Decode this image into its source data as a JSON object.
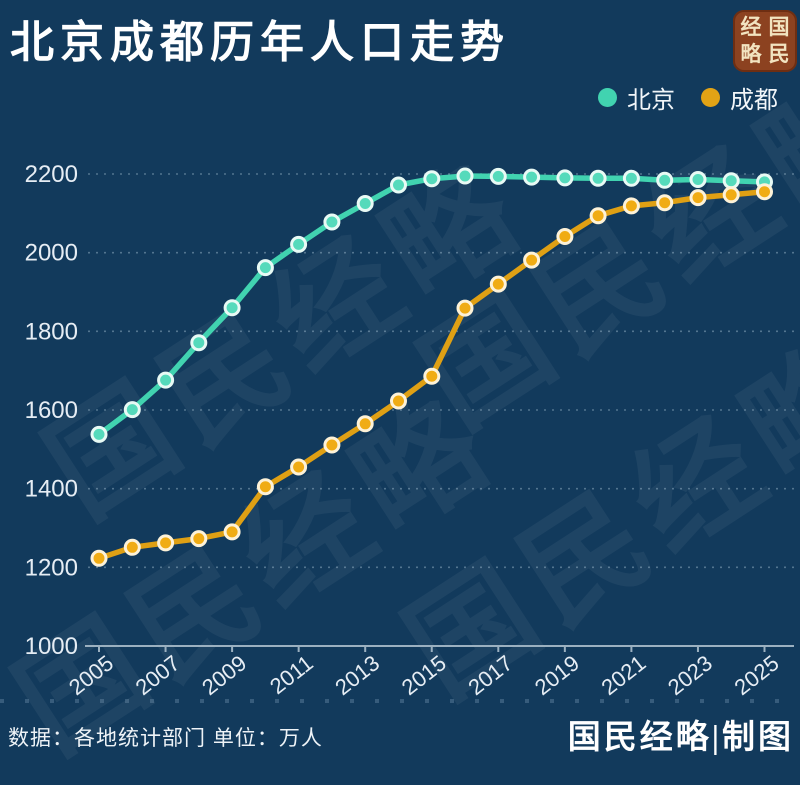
{
  "page": {
    "background": "#123a5c"
  },
  "header": {
    "title": "北京成都历年人口走势",
    "logo": {
      "chars_row_major": [
        "经",
        "国",
        "略",
        "民"
      ],
      "reading": "国民经略",
      "bg_color": "#8c4220",
      "text_color": "#f2e4c0"
    }
  },
  "legend": [
    {
      "label": "北京",
      "color": "#41d3b0"
    },
    {
      "label": "成都",
      "color": "#e2a315"
    }
  ],
  "watermark": {
    "text": "国民经略"
  },
  "footer": {
    "source_note": "数据：各地统计部门 单位：万人",
    "credit": "国民经略|制图"
  },
  "chart_data": {
    "type": "line",
    "title": "北京成都历年人口走势",
    "unit": "万人",
    "x": [
      2005,
      2006,
      2007,
      2008,
      2009,
      2010,
      2011,
      2012,
      2013,
      2014,
      2015,
      2016,
      2017,
      2018,
      2019,
      2020,
      2021,
      2022,
      2023,
      2024,
      2025
    ],
    "series": [
      {
        "name": "北京",
        "color": "#41d3b0",
        "marker_fill": "#55dabb",
        "marker_ring": "#e8faf5",
        "values": [
          1538,
          1601,
          1676,
          1771,
          1860,
          1962,
          2021,
          2078,
          2125,
          2172,
          2188,
          2195,
          2194,
          2192,
          2190,
          2189,
          2189,
          2184,
          2186,
          2183,
          2180
        ]
      },
      {
        "name": "成都",
        "color": "#dfa014",
        "marker_fill": "#f0ac14",
        "marker_ring": "#fdf2d8",
        "values": [
          1223,
          1251,
          1262,
          1273,
          1290,
          1405,
          1455,
          1511,
          1565,
          1623,
          1686,
          1859,
          1920,
          1981,
          2041,
          2094,
          2119,
          2127,
          2140,
          2147,
          2155
        ]
      }
    ],
    "ylim": [
      1000,
      2200
    ],
    "yticks": [
      1000,
      1200,
      1400,
      1600,
      1800,
      2000,
      2200
    ],
    "xticks": [
      2005,
      2007,
      2009,
      2011,
      2013,
      2015,
      2017,
      2019,
      2021,
      2023,
      2025
    ],
    "xlabel": "",
    "ylabel": "",
    "grid": "horizontal-dashed",
    "grid_color": "rgba(190,212,230,0.38)",
    "axis_color": "#9bb0c0",
    "tick_label_color": "#e6edf4",
    "legend_position": "top-right"
  }
}
